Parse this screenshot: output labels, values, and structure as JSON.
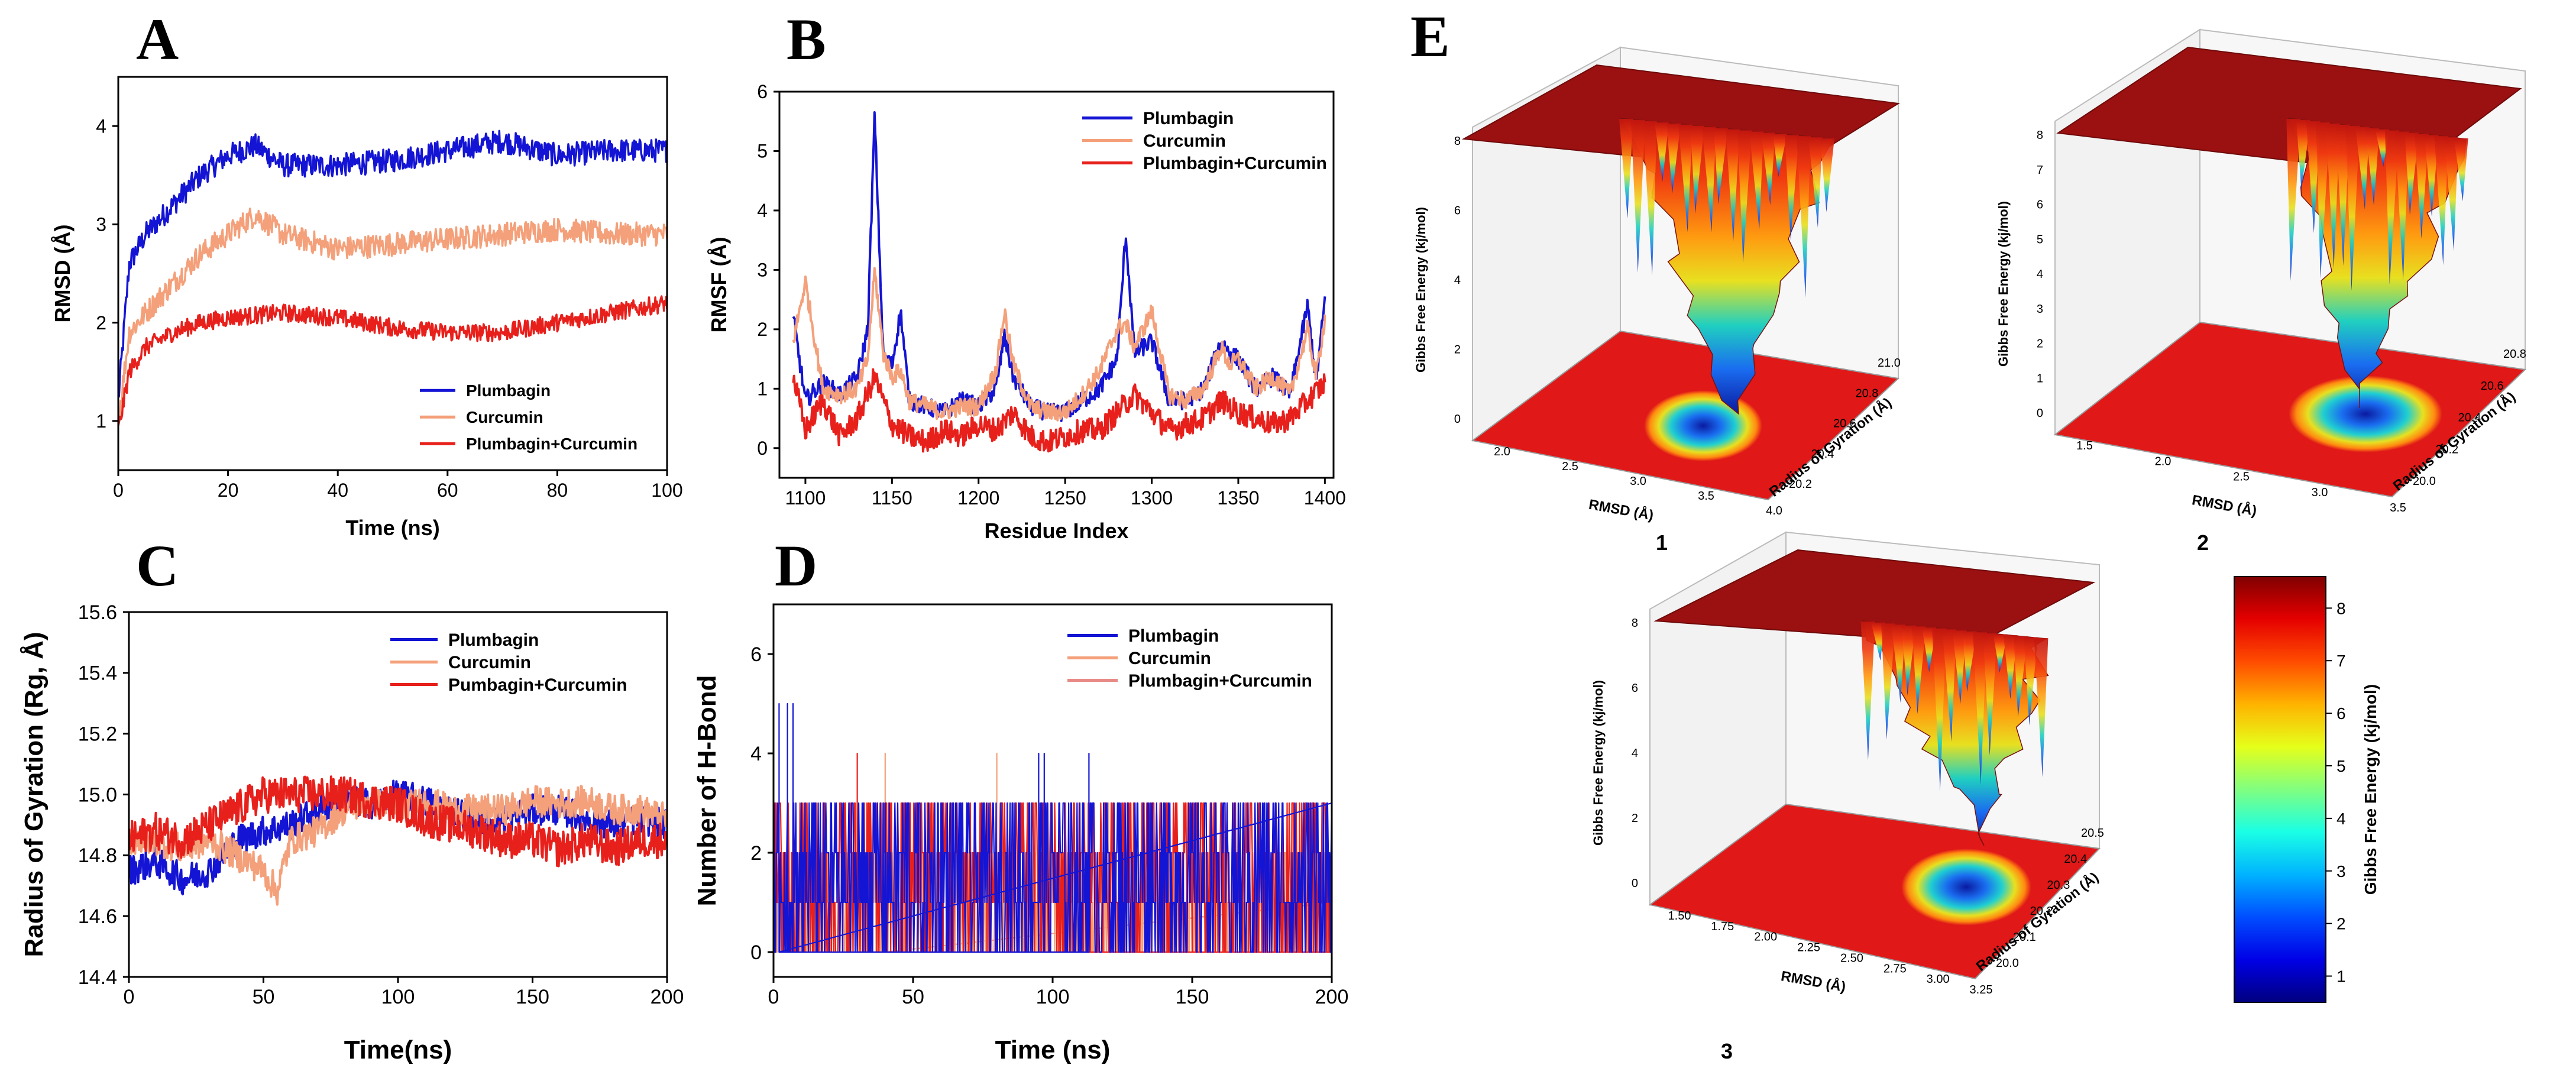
{
  "colors": {
    "plumbagin": "#1414d4",
    "curcumin": "#f4a07a",
    "combo": "#e8201c",
    "combo_legend_d": "#e88a86",
    "surface_top": "#9b1010",
    "floor": "#e01818"
  },
  "chart_data": [
    {
      "id": "A",
      "type": "line",
      "letter": "A",
      "xlabel": "Time (ns)",
      "ylabel": "RMSD (Å)",
      "xlim": [
        0,
        100
      ],
      "ylim": [
        0.5,
        4.5
      ],
      "xticks": [
        0,
        20,
        40,
        60,
        80,
        100
      ],
      "yticks": [
        1,
        2,
        3,
        4
      ],
      "legend_position": "bottom-right",
      "series": [
        {
          "name": "Plumbagin",
          "color_key": "plumbagin",
          "x": [
            0,
            2,
            5,
            10,
            15,
            20,
            25,
            30,
            40,
            50,
            60,
            70,
            80,
            90,
            100
          ],
          "y": [
            1.2,
            2.6,
            2.9,
            3.2,
            3.5,
            3.7,
            3.8,
            3.6,
            3.6,
            3.65,
            3.75,
            3.85,
            3.7,
            3.75,
            3.75
          ],
          "noise": 0.12
        },
        {
          "name": "Curcumin",
          "color_key": "curcumin",
          "x": [
            0,
            2,
            5,
            10,
            15,
            20,
            25,
            30,
            40,
            50,
            60,
            70,
            80,
            90,
            100
          ],
          "y": [
            1.0,
            1.9,
            2.1,
            2.4,
            2.7,
            2.9,
            3.1,
            2.9,
            2.75,
            2.8,
            2.85,
            2.9,
            2.95,
            2.9,
            2.9
          ],
          "noise": 0.12
        },
        {
          "name": "Plumbagin+Curcumin",
          "color_key": "combo",
          "x": [
            0,
            2,
            5,
            10,
            15,
            20,
            30,
            40,
            50,
            60,
            70,
            80,
            90,
            95,
            100
          ],
          "y": [
            0.9,
            1.5,
            1.75,
            1.9,
            2.0,
            2.05,
            2.1,
            2.05,
            1.95,
            1.9,
            1.9,
            2.0,
            2.1,
            2.15,
            2.2
          ],
          "noise": 0.09
        }
      ]
    },
    {
      "id": "B",
      "type": "line",
      "letter": "B",
      "xlabel": "Residue Index",
      "ylabel": "RMSF (Å)",
      "xlim": [
        1085,
        1405
      ],
      "ylim": [
        -0.5,
        6
      ],
      "xticks": [
        1100,
        1150,
        1200,
        1250,
        1300,
        1350,
        1400
      ],
      "yticks": [
        0,
        1,
        2,
        3,
        4,
        5,
        6
      ],
      "legend_position": "top-right",
      "series": [
        {
          "name": "Plumbagin",
          "color_key": "plumbagin",
          "x": [
            1093,
            1100,
            1110,
            1120,
            1130,
            1136,
            1140,
            1145,
            1150,
            1155,
            1160,
            1170,
            1180,
            1190,
            1200,
            1210,
            1215,
            1220,
            1230,
            1240,
            1250,
            1260,
            1270,
            1280,
            1285,
            1290,
            1300,
            1310,
            1320,
            1330,
            1340,
            1345,
            1350,
            1360,
            1370,
            1380,
            1390,
            1395,
            1400
          ],
          "y": [
            2.2,
            0.8,
            1.1,
            0.9,
            1.2,
            2.0,
            5.6,
            1.5,
            1.4,
            2.3,
            0.8,
            0.7,
            0.6,
            0.8,
            0.7,
            1.0,
            1.9,
            1.2,
            0.7,
            0.6,
            0.6,
            0.8,
            1.0,
            1.5,
            3.6,
            1.6,
            1.8,
            0.8,
            0.8,
            1.0,
            1.8,
            1.6,
            1.5,
            1.0,
            1.2,
            0.9,
            2.4,
            1.1,
            2.5
          ],
          "noise": 0.15
        },
        {
          "name": "Curcumin",
          "color_key": "curcumin",
          "x": [
            1093,
            1100,
            1110,
            1120,
            1130,
            1136,
            1140,
            1145,
            1150,
            1155,
            1160,
            1170,
            1180,
            1190,
            1200,
            1210,
            1215,
            1220,
            1230,
            1240,
            1250,
            1260,
            1270,
            1280,
            1285,
            1290,
            1300,
            1310,
            1320,
            1330,
            1340,
            1345,
            1350,
            1360,
            1370,
            1380,
            1390,
            1395,
            1400
          ],
          "y": [
            1.8,
            2.8,
            1.0,
            0.9,
            1.0,
            1.5,
            3.0,
            1.6,
            1.2,
            1.3,
            0.8,
            0.7,
            0.6,
            0.7,
            0.7,
            1.3,
            2.3,
            1.4,
            0.7,
            0.6,
            0.6,
            0.9,
            1.3,
            2.0,
            2.1,
            1.7,
            2.3,
            0.9,
            0.8,
            1.0,
            1.7,
            1.4,
            1.5,
            1.0,
            1.2,
            0.9,
            2.0,
            1.2,
            2.2
          ],
          "noise": 0.15
        },
        {
          "name": "Plumbagin+Curcumin",
          "color_key": "combo",
          "x": [
            1093,
            1100,
            1110,
            1120,
            1130,
            1140,
            1150,
            1160,
            1170,
            1180,
            1190,
            1200,
            1210,
            1220,
            1230,
            1240,
            1250,
            1260,
            1270,
            1280,
            1290,
            1300,
            1310,
            1320,
            1330,
            1340,
            1350,
            1360,
            1370,
            1380,
            1390,
            1400
          ],
          "y": [
            1.2,
            0.3,
            0.8,
            0.2,
            0.5,
            1.2,
            0.4,
            0.2,
            0.1,
            0.3,
            0.2,
            0.4,
            0.3,
            0.6,
            0.2,
            0.1,
            0.2,
            0.3,
            0.3,
            0.6,
            0.9,
            0.6,
            0.3,
            0.4,
            0.5,
            0.8,
            0.6,
            0.5,
            0.4,
            0.5,
            0.8,
            1.1
          ],
          "noise": 0.2
        }
      ]
    },
    {
      "id": "C",
      "type": "line",
      "letter": "C",
      "xlabel": "Time(ns)",
      "ylabel": "Radius of Gyration (Rg, Å)",
      "xlim": [
        0,
        200
      ],
      "ylim": [
        14.4,
        15.6
      ],
      "xticks": [
        0,
        50,
        100,
        150,
        200
      ],
      "yticks": [
        14.4,
        14.6,
        14.8,
        15.0,
        15.2,
        15.4,
        15.6
      ],
      "legend_position": "top-right",
      "series": [
        {
          "name": "Plumbagin",
          "color_key": "plumbagin",
          "x": [
            0,
            10,
            20,
            30,
            40,
            50,
            60,
            70,
            80,
            90,
            100,
            110,
            120,
            130,
            140,
            150,
            160,
            170,
            180,
            190,
            200
          ],
          "y": [
            14.75,
            14.78,
            14.72,
            14.75,
            14.85,
            14.88,
            14.9,
            14.95,
            14.98,
            14.97,
            15.0,
            14.98,
            14.95,
            14.92,
            14.92,
            14.95,
            14.95,
            14.92,
            14.9,
            14.92,
            14.9
          ],
          "noise": 0.05
        },
        {
          "name": "Curcumin",
          "color_key": "curcumin",
          "x": [
            0,
            10,
            20,
            30,
            40,
            50,
            55,
            60,
            70,
            80,
            90,
            100,
            110,
            120,
            130,
            140,
            150,
            160,
            170,
            180,
            190,
            200
          ],
          "y": [
            14.85,
            14.85,
            14.82,
            14.85,
            14.8,
            14.75,
            14.68,
            14.85,
            14.88,
            14.95,
            14.98,
            14.95,
            14.98,
            14.95,
            14.95,
            14.95,
            14.98,
            14.97,
            14.98,
            14.95,
            14.95,
            14.92
          ],
          "noise": 0.05
        },
        {
          "name": "Pumbagin+Curcumin",
          "color_key": "combo",
          "x": [
            0,
            10,
            20,
            30,
            40,
            50,
            60,
            70,
            80,
            90,
            100,
            110,
            120,
            130,
            140,
            150,
            160,
            170,
            180,
            190,
            200
          ],
          "y": [
            14.85,
            14.88,
            14.85,
            14.9,
            14.95,
            15.0,
            15.0,
            15.0,
            15.0,
            14.98,
            14.97,
            14.92,
            14.9,
            14.88,
            14.85,
            14.85,
            14.82,
            14.85,
            14.82,
            14.85,
            14.85
          ],
          "noise": 0.06
        }
      ]
    },
    {
      "id": "D",
      "type": "line",
      "letter": "D",
      "xlabel": "Time (ns)",
      "ylabel": "Number of H-Bond",
      "xlim": [
        0,
        200
      ],
      "ylim": [
        -0.5,
        7
      ],
      "xticks": [
        0,
        50,
        100,
        150,
        200
      ],
      "yticks": [
        0,
        2,
        4,
        6
      ],
      "legend_position": "top-right",
      "series": [
        {
          "name": "Plumbagin",
          "color_key": "plumbagin",
          "x": [
            0,
            10,
            20,
            50,
            100,
            150,
            200
          ],
          "y": [
            3,
            1,
            1,
            1,
            1,
            1,
            1
          ],
          "noise": 0,
          "discrete": true,
          "levels": [
            0,
            1,
            2,
            3
          ],
          "spikes": [
            [
              2,
              5
            ],
            [
              5,
              5
            ],
            [
              7,
              5
            ],
            [
              95,
              4
            ],
            [
              97,
              4
            ],
            [
              113,
              4
            ]
          ]
        },
        {
          "name": "Curcumin",
          "color_key": "curcumin",
          "x": [
            0,
            50,
            100,
            150,
            200
          ],
          "y": [
            1,
            1,
            1,
            1,
            1
          ],
          "noise": 0,
          "discrete": true,
          "levels": [
            0,
            1,
            2
          ],
          "spikes": [
            [
              40,
              4
            ],
            [
              55,
              3
            ],
            [
              80,
              4
            ],
            [
              120,
              3
            ]
          ]
        },
        {
          "name": "Plumbagin+Curcumin",
          "color_key": "combo",
          "legend_color_key": "combo_legend_d",
          "x": [
            0,
            50,
            100,
            150,
            200
          ],
          "y": [
            1,
            1,
            1,
            1,
            1
          ],
          "noise": 0,
          "discrete": true,
          "levels": [
            0,
            1,
            2,
            3
          ],
          "spikes": [
            [
              30,
              4
            ],
            [
              60,
              3
            ],
            [
              140,
              3
            ]
          ]
        }
      ]
    },
    {
      "id": "E",
      "type": "surface",
      "letter": "E",
      "zlabel": "Gibbs Free Energy (kj/mol)",
      "panels": [
        {
          "id": "1",
          "number": "1",
          "xlabel": "RMSD (Å)",
          "ylabel": "Radius of Gyration (Å)",
          "xticks": [
            "2.0",
            "2.5",
            "3.0",
            "3.5",
            "4.0"
          ],
          "yticks": [
            "20.2",
            "20.4",
            "20.6",
            "20.8",
            "21.0"
          ],
          "zticks": [
            "0",
            "2",
            "4",
            "6",
            "8"
          ]
        },
        {
          "id": "2",
          "number": "2",
          "xlabel": "RMSD (Å)",
          "ylabel": "Radius of Gyration (Å)",
          "xticks": [
            "1.5",
            "2.0",
            "2.5",
            "3.0",
            "3.5"
          ],
          "yticks": [
            "20.0",
            "20.2",
            "20.4",
            "20.6",
            "20.8"
          ],
          "zticks": [
            "0",
            "1",
            "2",
            "3",
            "4",
            "5",
            "6",
            "7",
            "8"
          ]
        },
        {
          "id": "3",
          "number": "3",
          "xlabel": "RMSD (Å)",
          "ylabel": "Radius of Gyration (Å)",
          "xticks": [
            "1.50",
            "1.75",
            "2.00",
            "2.25",
            "2.50",
            "2.75",
            "3.00",
            "3.25"
          ],
          "yticks": [
            "20.0",
            "20.1",
            "20.2",
            "20.3",
            "20.4",
            "20.5"
          ],
          "zticks": [
            "0",
            "2",
            "4",
            "6",
            "8"
          ]
        }
      ],
      "colorbar": {
        "label": "Gibbs Free Energy (kj/mol)",
        "min": 0.5,
        "max": 8.6,
        "ticks": [
          1,
          2,
          3,
          4,
          5,
          6,
          7,
          8
        ]
      }
    }
  ]
}
